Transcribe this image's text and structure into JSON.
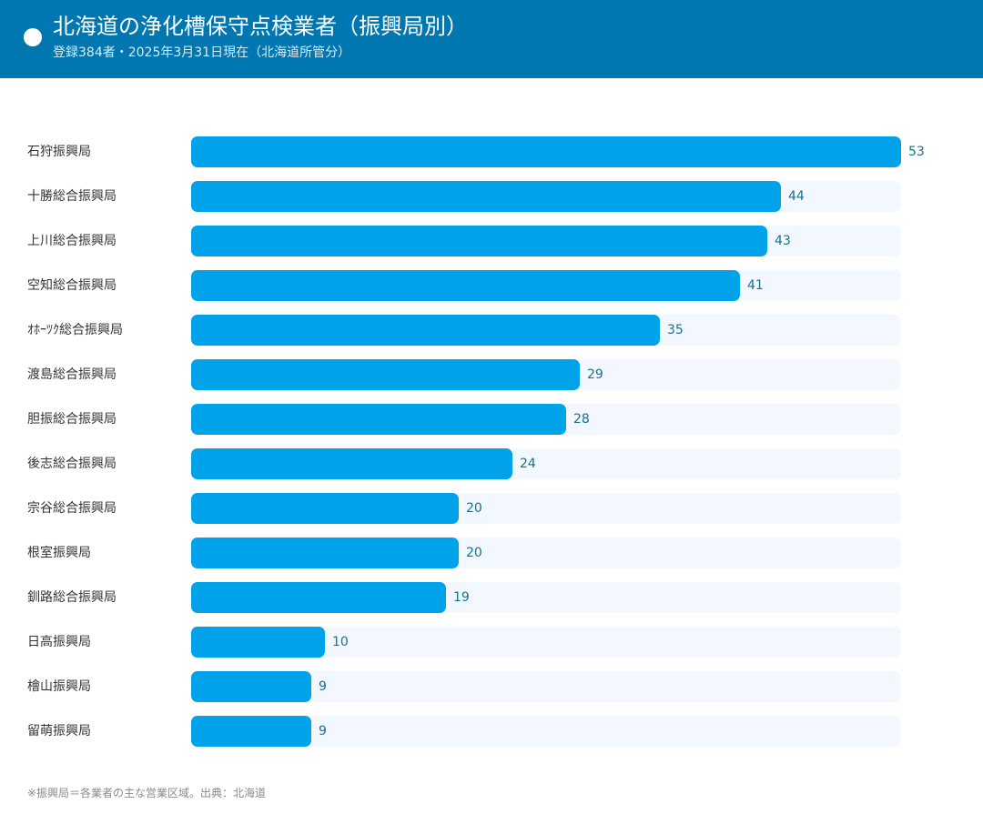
{
  "header": {
    "title": "北海道の浄化槽保守点検業者（振興局別）",
    "subtitle": "登録384者・2025年3月31日現在（北海道所管分）"
  },
  "colors": {
    "header_bg": "#0077b0",
    "bar": "#00a3ea",
    "track": "#f2f8fd",
    "value_text": "#1a6f94"
  },
  "chart_data": {
    "type": "bar",
    "orientation": "horizontal",
    "categories": [
      "石狩振興局",
      "十勝総合振興局",
      "上川総合振興局",
      "空知総合振興局",
      "ｵﾎｰﾂｸ総合振興局",
      "渡島総合振興局",
      "胆振総合振興局",
      "後志総合振興局",
      "宗谷総合振興局",
      "根室振興局",
      "釧路総合振興局",
      "日高振興局",
      "檜山振興局",
      "留萌振興局"
    ],
    "values": [
      53,
      44,
      43,
      41,
      35,
      29,
      28,
      24,
      20,
      20,
      19,
      10,
      9,
      9
    ],
    "xlim": [
      0,
      53
    ],
    "data_labels": true,
    "grid": false,
    "legend": false
  },
  "footnote": "※振興局＝各業者の主な営業区域。出典：北海道"
}
